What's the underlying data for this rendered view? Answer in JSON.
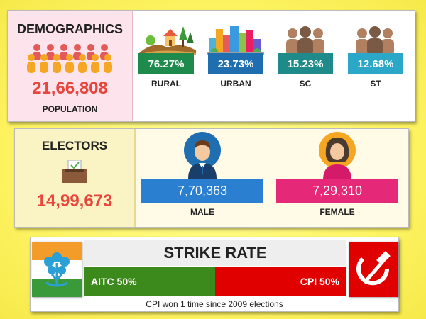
{
  "demographics": {
    "title": "DEMOGRAPHICS",
    "population_value": "21,66,808",
    "population_label": "POPULATION",
    "stats": [
      {
        "value": "76.27%",
        "label": "RURAL",
        "color": "#1e8a4c",
        "icon": "rural-landscape-icon"
      },
      {
        "value": "23.73%",
        "label": "URBAN",
        "color": "#1f6fb0",
        "icon": "city-skyline-icon"
      },
      {
        "value": "15.23%",
        "label": "SC",
        "color": "#1f8a8a",
        "icon": "people-group-icon"
      },
      {
        "value": "12.68%",
        "label": "ST",
        "color": "#2ba8c8",
        "icon": "people-group-icon"
      }
    ]
  },
  "electors": {
    "title": "ELECTORS",
    "total": "14,99,673",
    "male_value": "7,70,363",
    "male_label": "MALE",
    "female_value": "7,29,310",
    "female_label": "FEMALE",
    "male_color": "#2a7fd0",
    "female_color": "#e62878"
  },
  "strike": {
    "title": "STRIKE RATE",
    "aitc_label": "AITC 50%",
    "cpi_label": "CPI 50%",
    "aitc_share": 0.5,
    "cpi_share": 0.5,
    "aitc_color": "#3d8a1c",
    "cpi_color": "#e00000",
    "footnote": "CPI won 1 time since 2009 elections"
  }
}
